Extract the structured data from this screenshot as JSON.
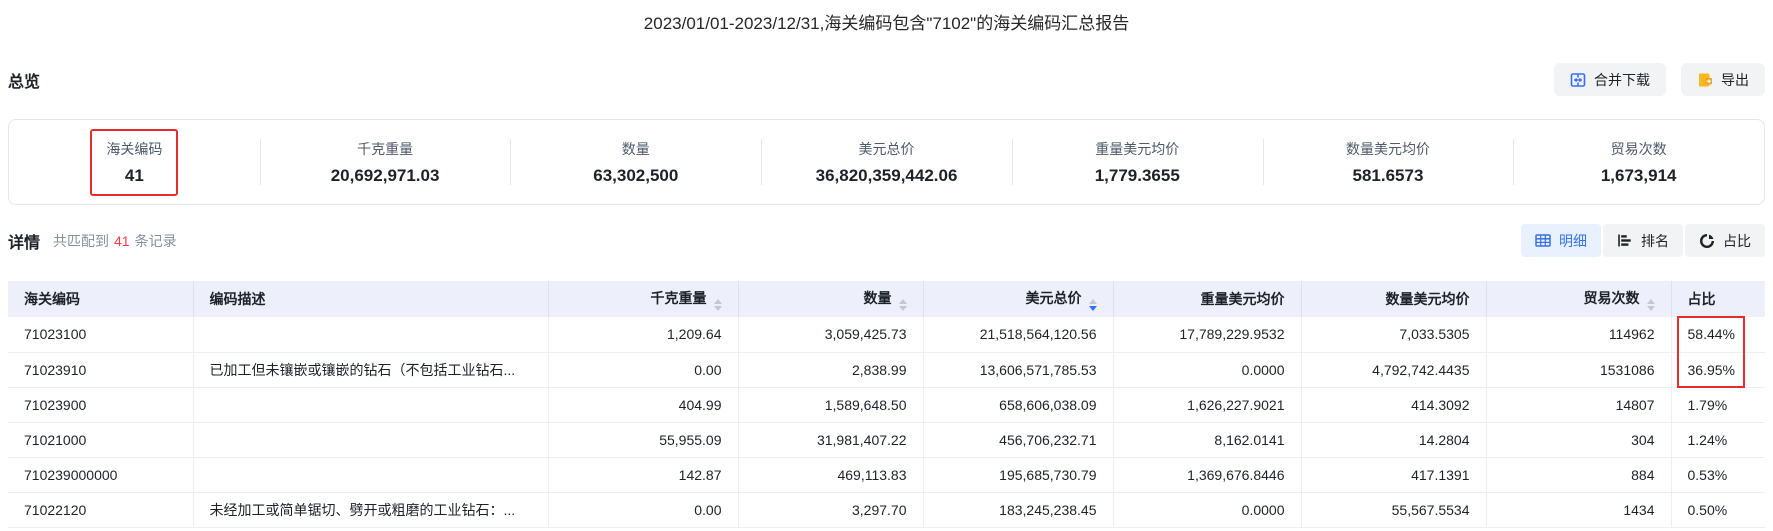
{
  "page": {
    "title": "2023/01/01-2023/12/31,海关编码包含\"7102\"的海关编码汇总报告"
  },
  "overview": {
    "heading": "总览",
    "merge_download_label": "合并下载",
    "export_label": "导出",
    "stats": [
      {
        "label": "海关编码",
        "value": "41",
        "highlighted": true
      },
      {
        "label": "千克重量",
        "value": "20,692,971.03",
        "highlighted": false
      },
      {
        "label": "数量",
        "value": "63,302,500",
        "highlighted": false
      },
      {
        "label": "美元总价",
        "value": "36,820,359,442.06",
        "highlighted": false
      },
      {
        "label": "重量美元均价",
        "value": "1,779.3655",
        "highlighted": false
      },
      {
        "label": "数量美元均价",
        "value": "581.6573",
        "highlighted": false
      },
      {
        "label": "贸易次数",
        "value": "1,673,914",
        "highlighted": false
      }
    ]
  },
  "detail": {
    "heading": "详情",
    "match_prefix": "共匹配到",
    "match_count": "41",
    "match_suffix": "条记录",
    "view_buttons": [
      {
        "label": "明细",
        "active": true
      },
      {
        "label": "排名",
        "active": false
      },
      {
        "label": "占比",
        "active": false
      }
    ]
  },
  "table": {
    "columns": [
      {
        "label": "海关编码",
        "sortable": false,
        "sorted": "none"
      },
      {
        "label": "编码描述",
        "sortable": false,
        "sorted": "none"
      },
      {
        "label": "千克重量",
        "sortable": true,
        "sorted": "none"
      },
      {
        "label": "数量",
        "sortable": true,
        "sorted": "none"
      },
      {
        "label": "美元总价",
        "sortable": true,
        "sorted": "desc"
      },
      {
        "label": "重量美元均价",
        "sortable": false,
        "sorted": "none"
      },
      {
        "label": "数量美元均价",
        "sortable": false,
        "sorted": "none"
      },
      {
        "label": "贸易次数",
        "sortable": true,
        "sorted": "none"
      },
      {
        "label": "占比",
        "sortable": false,
        "sorted": "none"
      }
    ],
    "rows": [
      [
        "71023100",
        "",
        "1,209.64",
        "3,059,425.73",
        "21,518,564,120.56",
        "17,789,229.9532",
        "7,033.5305",
        "114962",
        "58.44%"
      ],
      [
        "71023910",
        "已加工但未镶嵌或镶嵌的钻石（不包括工业钻石...",
        "0.00",
        "2,838.99",
        "13,606,571,785.53",
        "0.0000",
        "4,792,742.4435",
        "1531086",
        "36.95%"
      ],
      [
        "71023900",
        "",
        "404.99",
        "1,589,648.50",
        "658,606,038.09",
        "1,626,227.9021",
        "414.3092",
        "14807",
        "1.79%"
      ],
      [
        "71021000",
        "",
        "55,955.09",
        "31,981,407.22",
        "456,706,232.71",
        "8,162.0141",
        "14.2804",
        "304",
        "1.24%"
      ],
      [
        "710239000000",
        "",
        "142.87",
        "469,113.83",
        "195,685,730.79",
        "1,369,676.8446",
        "417.1391",
        "884",
        "0.53%"
      ],
      [
        "71022120",
        "未经加工或简单锯切、劈开或粗磨的工业钻石：...",
        "0.00",
        "3,297.70",
        "183,245,238.45",
        "0.0000",
        "55,567.5534",
        "1434",
        "0.50%"
      ]
    ],
    "highlight_rows_in_ratio_column": [
      0,
      1
    ]
  },
  "colors": {
    "accent_blue": "#3370ff",
    "active_view_bg": "#e8f1fd",
    "active_view_text": "#3671e8",
    "export_icon_orange": "#f7ba1e",
    "annotation_red": "#e62c2c",
    "count_red": "#f53f3f",
    "table_header_bg": "#edf0fa"
  }
}
